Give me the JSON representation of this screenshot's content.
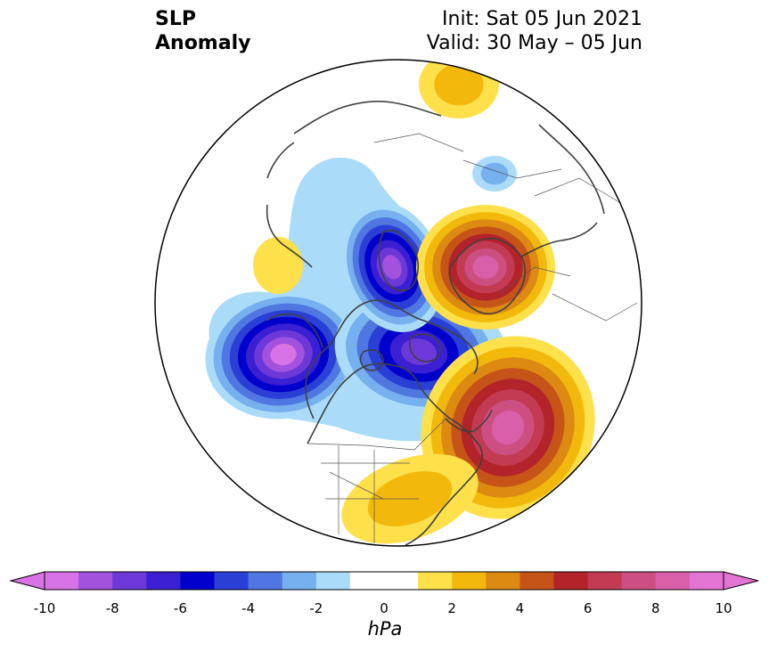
{
  "title": {
    "left_line1": "SLP",
    "left_line2": "Anomaly",
    "right_line1": "Init: Sat 05 Jun 2021",
    "right_line2": "Valid: 30 May – 05 Jun"
  },
  "map": {
    "projection": "north-polar-stereographic",
    "field": "sea level pressure anomaly",
    "features": [
      {
        "name": "low-gulf-of-alaska",
        "kind": "low",
        "peak_hpa": -9
      },
      {
        "name": "low-canadian-arctic",
        "kind": "low",
        "peak_hpa": -7
      },
      {
        "name": "low-east-siberia",
        "kind": "low",
        "peak_hpa": -8
      },
      {
        "name": "high-western-europe",
        "kind": "high",
        "peak_hpa": 8
      },
      {
        "name": "high-north-atlantic",
        "kind": "high",
        "peak_hpa": 8
      },
      {
        "name": "high-eastern-north-america",
        "kind": "high",
        "peak_hpa": 2
      },
      {
        "name": "high-north-pacific",
        "kind": "high",
        "peak_hpa": 1
      },
      {
        "name": "high-north-siberia",
        "kind": "high",
        "peak_hpa": 2
      },
      {
        "name": "low-kazakhstan",
        "kind": "low",
        "peak_hpa": -2
      }
    ]
  },
  "colorbar": {
    "unit": "hPa",
    "ticks": [
      "-10",
      "-8",
      "-6",
      "-4",
      "-2",
      "0",
      "2",
      "4",
      "6",
      "8",
      "10"
    ],
    "bins": [
      {
        "low": -10,
        "high": -9,
        "color": "#d873e5"
      },
      {
        "low": -9,
        "high": -8,
        "color": "#a352dd"
      },
      {
        "low": -8,
        "high": -7,
        "color": "#6c39d8"
      },
      {
        "low": -7,
        "high": -6,
        "color": "#3a20d2"
      },
      {
        "low": -6,
        "high": -5,
        "color": "#0000cc"
      },
      {
        "low": -5,
        "high": -4,
        "color": "#2a3fd6"
      },
      {
        "low": -4,
        "high": -3,
        "color": "#5077e1"
      },
      {
        "low": -3,
        "high": -2,
        "color": "#76b0ee"
      },
      {
        "low": -2,
        "high": -1,
        "color": "#aadcfa"
      },
      {
        "low": -1,
        "high": 1,
        "color": "#ffffff"
      },
      {
        "low": 1,
        "high": 2,
        "color": "#fde04a"
      },
      {
        "low": 2,
        "high": 3,
        "color": "#f2b90c"
      },
      {
        "low": 3,
        "high": 4,
        "color": "#dd8a12"
      },
      {
        "low": 4,
        "high": 5,
        "color": "#c65419"
      },
      {
        "low": 5,
        "high": 6,
        "color": "#b3232a"
      },
      {
        "low": 6,
        "high": 7,
        "color": "#c23b52"
      },
      {
        "low": 7,
        "high": 8,
        "color": "#cd4f82"
      },
      {
        "low": 8,
        "high": 9,
        "color": "#d85fa8"
      },
      {
        "low": 9,
        "high": 10,
        "color": "#e374d4"
      }
    ],
    "extend_low_color": "#d873e5",
    "extend_high_color": "#e374d4"
  }
}
